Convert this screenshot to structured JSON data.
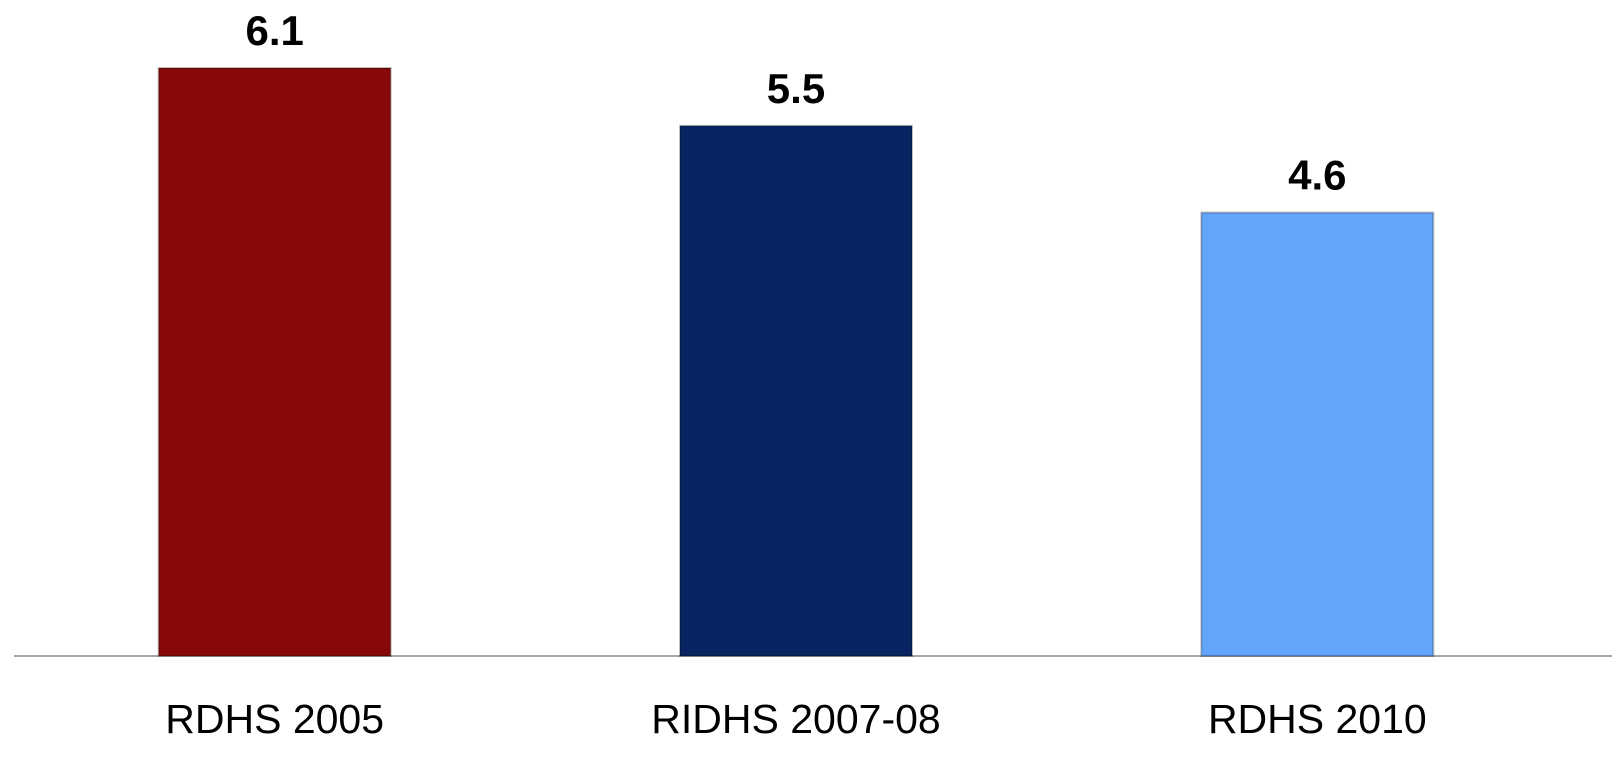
{
  "chart_data": {
    "type": "bar",
    "categories": [
      "RDHS 2005",
      "RIDHS 2007-08",
      "RDHS 2010"
    ],
    "values": [
      6.1,
      5.5,
      4.6
    ],
    "colors": [
      "#870808",
      "#082463",
      "#63a5fb"
    ]
  }
}
